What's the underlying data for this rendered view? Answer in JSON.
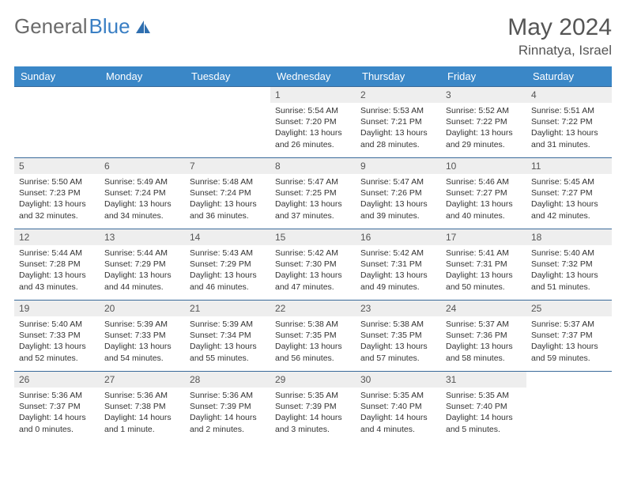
{
  "brand": {
    "first": "General",
    "second": "Blue"
  },
  "title": "May 2024",
  "location": "Rinnatya, Israel",
  "colors": {
    "header_bg": "#3a87c7",
    "header_text": "#ffffff",
    "cell_border": "#3a6a9a",
    "daynum_bg": "#eeeeee",
    "logo_gray": "#6b6b6b",
    "logo_blue": "#3a7fc4",
    "text": "#333333",
    "title_color": "#555555",
    "background": "#ffffff"
  },
  "typography": {
    "month_title_fontsize": 30,
    "location_fontsize": 17,
    "weekday_fontsize": 13,
    "daynum_fontsize": 12,
    "body_fontsize": 10.5,
    "logo_fontsize": 26
  },
  "weekdays": [
    "Sunday",
    "Monday",
    "Tuesday",
    "Wednesday",
    "Thursday",
    "Friday",
    "Saturday"
  ],
  "weeks": [
    [
      {
        "n": "",
        "sr": "",
        "ss": "",
        "dl": ""
      },
      {
        "n": "",
        "sr": "",
        "ss": "",
        "dl": ""
      },
      {
        "n": "",
        "sr": "",
        "ss": "",
        "dl": ""
      },
      {
        "n": "1",
        "sr": "Sunrise: 5:54 AM",
        "ss": "Sunset: 7:20 PM",
        "dl": "Daylight: 13 hours and 26 minutes."
      },
      {
        "n": "2",
        "sr": "Sunrise: 5:53 AM",
        "ss": "Sunset: 7:21 PM",
        "dl": "Daylight: 13 hours and 28 minutes."
      },
      {
        "n": "3",
        "sr": "Sunrise: 5:52 AM",
        "ss": "Sunset: 7:22 PM",
        "dl": "Daylight: 13 hours and 29 minutes."
      },
      {
        "n": "4",
        "sr": "Sunrise: 5:51 AM",
        "ss": "Sunset: 7:22 PM",
        "dl": "Daylight: 13 hours and 31 minutes."
      }
    ],
    [
      {
        "n": "5",
        "sr": "Sunrise: 5:50 AM",
        "ss": "Sunset: 7:23 PM",
        "dl": "Daylight: 13 hours and 32 minutes."
      },
      {
        "n": "6",
        "sr": "Sunrise: 5:49 AM",
        "ss": "Sunset: 7:24 PM",
        "dl": "Daylight: 13 hours and 34 minutes."
      },
      {
        "n": "7",
        "sr": "Sunrise: 5:48 AM",
        "ss": "Sunset: 7:24 PM",
        "dl": "Daylight: 13 hours and 36 minutes."
      },
      {
        "n": "8",
        "sr": "Sunrise: 5:47 AM",
        "ss": "Sunset: 7:25 PM",
        "dl": "Daylight: 13 hours and 37 minutes."
      },
      {
        "n": "9",
        "sr": "Sunrise: 5:47 AM",
        "ss": "Sunset: 7:26 PM",
        "dl": "Daylight: 13 hours and 39 minutes."
      },
      {
        "n": "10",
        "sr": "Sunrise: 5:46 AM",
        "ss": "Sunset: 7:27 PM",
        "dl": "Daylight: 13 hours and 40 minutes."
      },
      {
        "n": "11",
        "sr": "Sunrise: 5:45 AM",
        "ss": "Sunset: 7:27 PM",
        "dl": "Daylight: 13 hours and 42 minutes."
      }
    ],
    [
      {
        "n": "12",
        "sr": "Sunrise: 5:44 AM",
        "ss": "Sunset: 7:28 PM",
        "dl": "Daylight: 13 hours and 43 minutes."
      },
      {
        "n": "13",
        "sr": "Sunrise: 5:44 AM",
        "ss": "Sunset: 7:29 PM",
        "dl": "Daylight: 13 hours and 44 minutes."
      },
      {
        "n": "14",
        "sr": "Sunrise: 5:43 AM",
        "ss": "Sunset: 7:29 PM",
        "dl": "Daylight: 13 hours and 46 minutes."
      },
      {
        "n": "15",
        "sr": "Sunrise: 5:42 AM",
        "ss": "Sunset: 7:30 PM",
        "dl": "Daylight: 13 hours and 47 minutes."
      },
      {
        "n": "16",
        "sr": "Sunrise: 5:42 AM",
        "ss": "Sunset: 7:31 PM",
        "dl": "Daylight: 13 hours and 49 minutes."
      },
      {
        "n": "17",
        "sr": "Sunrise: 5:41 AM",
        "ss": "Sunset: 7:31 PM",
        "dl": "Daylight: 13 hours and 50 minutes."
      },
      {
        "n": "18",
        "sr": "Sunrise: 5:40 AM",
        "ss": "Sunset: 7:32 PM",
        "dl": "Daylight: 13 hours and 51 minutes."
      }
    ],
    [
      {
        "n": "19",
        "sr": "Sunrise: 5:40 AM",
        "ss": "Sunset: 7:33 PM",
        "dl": "Daylight: 13 hours and 52 minutes."
      },
      {
        "n": "20",
        "sr": "Sunrise: 5:39 AM",
        "ss": "Sunset: 7:33 PM",
        "dl": "Daylight: 13 hours and 54 minutes."
      },
      {
        "n": "21",
        "sr": "Sunrise: 5:39 AM",
        "ss": "Sunset: 7:34 PM",
        "dl": "Daylight: 13 hours and 55 minutes."
      },
      {
        "n": "22",
        "sr": "Sunrise: 5:38 AM",
        "ss": "Sunset: 7:35 PM",
        "dl": "Daylight: 13 hours and 56 minutes."
      },
      {
        "n": "23",
        "sr": "Sunrise: 5:38 AM",
        "ss": "Sunset: 7:35 PM",
        "dl": "Daylight: 13 hours and 57 minutes."
      },
      {
        "n": "24",
        "sr": "Sunrise: 5:37 AM",
        "ss": "Sunset: 7:36 PM",
        "dl": "Daylight: 13 hours and 58 minutes."
      },
      {
        "n": "25",
        "sr": "Sunrise: 5:37 AM",
        "ss": "Sunset: 7:37 PM",
        "dl": "Daylight: 13 hours and 59 minutes."
      }
    ],
    [
      {
        "n": "26",
        "sr": "Sunrise: 5:36 AM",
        "ss": "Sunset: 7:37 PM",
        "dl": "Daylight: 14 hours and 0 minutes."
      },
      {
        "n": "27",
        "sr": "Sunrise: 5:36 AM",
        "ss": "Sunset: 7:38 PM",
        "dl": "Daylight: 14 hours and 1 minute."
      },
      {
        "n": "28",
        "sr": "Sunrise: 5:36 AM",
        "ss": "Sunset: 7:39 PM",
        "dl": "Daylight: 14 hours and 2 minutes."
      },
      {
        "n": "29",
        "sr": "Sunrise: 5:35 AM",
        "ss": "Sunset: 7:39 PM",
        "dl": "Daylight: 14 hours and 3 minutes."
      },
      {
        "n": "30",
        "sr": "Sunrise: 5:35 AM",
        "ss": "Sunset: 7:40 PM",
        "dl": "Daylight: 14 hours and 4 minutes."
      },
      {
        "n": "31",
        "sr": "Sunrise: 5:35 AM",
        "ss": "Sunset: 7:40 PM",
        "dl": "Daylight: 14 hours and 5 minutes."
      },
      {
        "n": "",
        "sr": "",
        "ss": "",
        "dl": ""
      }
    ]
  ]
}
